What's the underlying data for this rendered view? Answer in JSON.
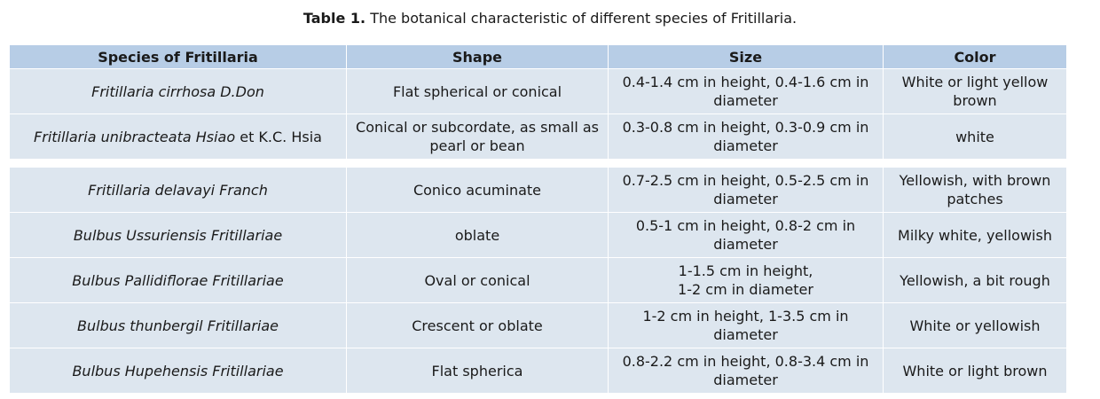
{
  "caption": {
    "label": "Table 1.",
    "text": " The botanical characteristic of different species of Fritillaria."
  },
  "headers": [
    "Species of Fritillaria",
    "Shape",
    "Size",
    "Color"
  ],
  "rows_top": [
    {
      "species_italic": "Fritillaria cirrhosa D.Don",
      "species_plain": "",
      "shape": "Flat spherical or conical",
      "size": "0.4-1.4 cm in height, 0.4-1.6 cm in diameter",
      "color": "White or light yellow brown"
    },
    {
      "species_italic": "Fritillaria unibracteata Hsiao",
      "species_plain": " et K.C. Hsia",
      "shape": "Conical or subcordate, as small as pearl or bean",
      "size": "0.3-0.8 cm in height, 0.3-0.9 cm in diameter",
      "color": "white"
    }
  ],
  "rows_bottom": [
    {
      "species_italic": "Fritillaria delavayi Franch",
      "shape": "Conico acuminate",
      "size": "0.7-2.5 cm in height, 0.5-2.5 cm in diameter",
      "color": "Yellowish, with brown patches"
    },
    {
      "species_italic": "Bulbus Ussuriensis Fritillariae",
      "shape": "oblate",
      "size": "0.5-1 cm in height, 0.8-2 cm in diameter",
      "color": "Milky white, yellowish"
    },
    {
      "species_italic": "Bulbus Pallidiflorae Fritillariae",
      "shape": "Oval or conical",
      "size_line1": "1-1.5 cm in height,",
      "size_line2": "1-2 cm in diameter",
      "color": "Yellowish, a bit rough"
    },
    {
      "species_italic": "Bulbus thunbergil Fritillariae",
      "shape": "Crescent or oblate",
      "size": "1-2 cm in height, 1-3.5 cm in diameter",
      "color": "White or yellowish"
    },
    {
      "species_italic": "Bulbus Hupehensis Fritillariae",
      "shape": "Flat spherica",
      "size": "0.8-2.2 cm in height, 0.8-3.4 cm in diameter",
      "color": "White or light brown"
    }
  ],
  "colors": {
    "header_bg": "#b7cde6",
    "cell_bg": "#dde6ef",
    "border": "#ffffff"
  }
}
